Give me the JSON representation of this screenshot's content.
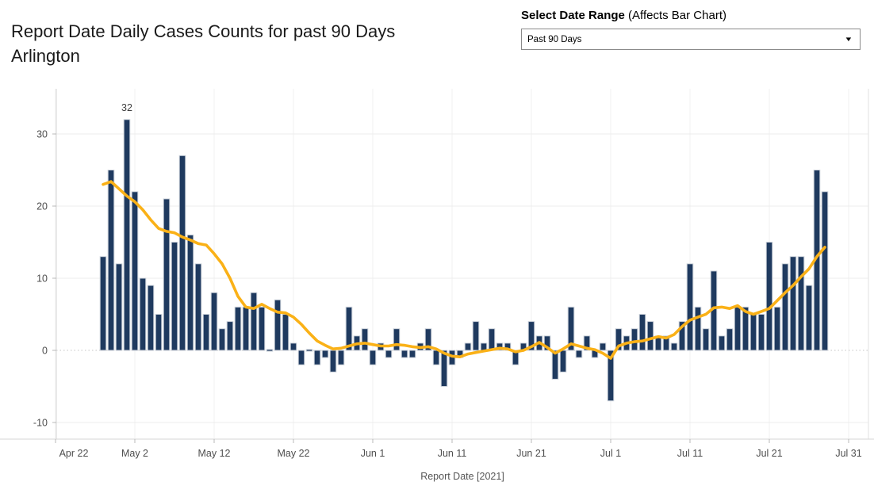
{
  "header": {
    "title_line1": "Report Date Daily Cases Counts for past 90 Days",
    "title_line2": "Arlington"
  },
  "filter": {
    "label_bold": "Select Date Range",
    "label_rest": " (Affects Bar Chart)",
    "selected_value": "Past 90 Days",
    "caret_icon": "▼"
  },
  "chart_data": {
    "type": "bar",
    "overlay": "line",
    "title": "Report Date Daily Cases Counts for past 90 Days Arlington",
    "xlabel": "Report Date [2021]",
    "ylabel": "",
    "ylim": [
      -13,
      36
    ],
    "grid": true,
    "legend": false,
    "zero_line": "dotted",
    "annotation": {
      "text": "32",
      "index": 3
    },
    "colors": {
      "bar": "#1f3a5f",
      "line": "#fab117",
      "axis_text": "#4e4e4e"
    },
    "y_ticks": [
      -10,
      0,
      10,
      20,
      30
    ],
    "x_ticks": [
      {
        "label": "Apr 22",
        "day_offset": -6
      },
      {
        "label": "May 2",
        "day_offset": 4
      },
      {
        "label": "May 12",
        "day_offset": 14
      },
      {
        "label": "May 22",
        "day_offset": 24
      },
      {
        "label": "Jun 1",
        "day_offset": 34
      },
      {
        "label": "Jun 11",
        "day_offset": 44
      },
      {
        "label": "Jun 21",
        "day_offset": 54
      },
      {
        "label": "Jul 1",
        "day_offset": 64
      },
      {
        "label": "Jul 11",
        "day_offset": 74
      },
      {
        "label": "Jul 21",
        "day_offset": 84
      },
      {
        "label": "Jul 31",
        "day_offset": 94
      }
    ],
    "dates": [
      "Apr 28",
      "Apr 29",
      "Apr 30",
      "May 1",
      "May 2",
      "May 3",
      "May 4",
      "May 5",
      "May 6",
      "May 7",
      "May 8",
      "May 9",
      "May 10",
      "May 11",
      "May 12",
      "May 13",
      "May 14",
      "May 15",
      "May 16",
      "May 17",
      "May 18",
      "May 19",
      "May 20",
      "May 21",
      "May 22",
      "May 23",
      "May 24",
      "May 25",
      "May 26",
      "May 27",
      "May 28",
      "May 29",
      "May 30",
      "May 31",
      "Jun 1",
      "Jun 2",
      "Jun 3",
      "Jun 4",
      "Jun 5",
      "Jun 6",
      "Jun 7",
      "Jun 8",
      "Jun 9",
      "Jun 10",
      "Jun 11",
      "Jun 12",
      "Jun 13",
      "Jun 14",
      "Jun 15",
      "Jun 16",
      "Jun 17",
      "Jun 18",
      "Jun 19",
      "Jun 20",
      "Jun 21",
      "Jun 22",
      "Jun 23",
      "Jun 24",
      "Jun 25",
      "Jun 26",
      "Jun 27",
      "Jun 28",
      "Jun 29",
      "Jun 30",
      "Jul 1",
      "Jul 2",
      "Jul 3",
      "Jul 4",
      "Jul 5",
      "Jul 6",
      "Jul 7",
      "Jul 8",
      "Jul 9",
      "Jul 10",
      "Jul 11",
      "Jul 12",
      "Jul 13",
      "Jul 14",
      "Jul 15",
      "Jul 16",
      "Jul 17",
      "Jul 18",
      "Jul 19",
      "Jul 20",
      "Jul 21",
      "Jul 22",
      "Jul 23",
      "Jul 24",
      "Jul 25",
      "Jul 26",
      "Jul 27",
      "Jul 28"
    ],
    "series": [
      {
        "name": "daily_cases",
        "type": "bar",
        "values": [
          13,
          25,
          12,
          32,
          22,
          10,
          9,
          5,
          21,
          15,
          27,
          16,
          12,
          5,
          8,
          3,
          4,
          6,
          6,
          8,
          6,
          0,
          7,
          5,
          1,
          -2,
          0,
          -2,
          -1,
          -3,
          -2,
          6,
          2,
          3,
          -2,
          1,
          -1,
          3,
          -1,
          -1,
          1,
          3,
          -2,
          -5,
          -2,
          -1,
          1,
          4,
          1,
          3,
          1,
          1,
          -2,
          1,
          4,
          2,
          2,
          -4,
          -3,
          6,
          -1,
          2,
          -1,
          1,
          -7,
          3,
          2,
          3,
          5,
          4,
          2,
          2,
          1,
          4,
          12,
          6,
          3,
          11,
          2,
          3,
          6,
          6,
          5,
          5,
          15,
          6,
          12,
          13,
          13,
          9,
          25,
          22
        ]
      },
      {
        "name": "trend_moving_average",
        "type": "line",
        "values": [
          23.0,
          23.4,
          22.4,
          21.4,
          20.6,
          19.5,
          18.1,
          16.9,
          16.5,
          16.3,
          15.7,
          15.3,
          14.8,
          14.6,
          13.4,
          12.0,
          10.0,
          7.5,
          6.0,
          5.8,
          6.4,
          5.8,
          5.3,
          5.2,
          4.6,
          3.6,
          2.4,
          1.3,
          0.7,
          0.2,
          0.3,
          0.6,
          0.9,
          1.0,
          0.8,
          0.6,
          0.6,
          0.8,
          0.7,
          0.5,
          0.4,
          0.5,
          0.2,
          -0.4,
          -0.8,
          -0.9,
          -0.5,
          -0.3,
          -0.1,
          0.1,
          0.3,
          0.2,
          -0.2,
          0.0,
          0.5,
          1.1,
          0.4,
          -0.4,
          0.2,
          0.9,
          0.6,
          0.3,
          0.1,
          -0.4,
          -1.1,
          0.6,
          1.0,
          1.2,
          1.3,
          1.6,
          1.9,
          1.7,
          2.2,
          3.3,
          4.2,
          4.6,
          5.0,
          5.9,
          6.0,
          5.8,
          6.2,
          5.4,
          5.0,
          5.4,
          5.8,
          6.9,
          8.0,
          9.0,
          10.2,
          11.3,
          13.0,
          14.3
        ]
      }
    ]
  }
}
